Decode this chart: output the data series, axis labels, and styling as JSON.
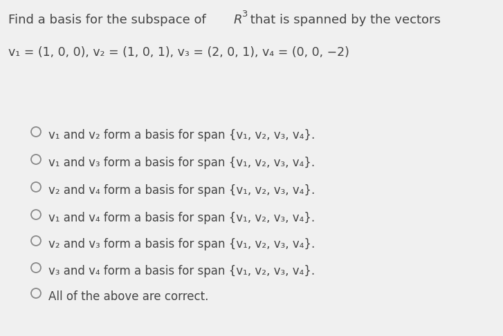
{
  "background_color": "#f0f0f0",
  "text_color": "#444444",
  "circle_color": "#888888",
  "title_fontsize": 13.0,
  "vectors_fontsize": 12.5,
  "option_fontsize": 12.0,
  "options": [
    "v₁ and v₂ form a basis for span {v₁, v₂, v₃, v₄}.",
    "v₁ and v₃ form a basis for span {v₁, v₂, v₃, v₄}.",
    "v₂ and v₄ form a basis for span {v₁, v₂, v₃, v₄}.",
    "v₁ and v₄ form a basis for span {v₁, v₂, v₃, v₄}.",
    "v₂ and v₃ form a basis for span {v₁, v₂, v₃, v₄}.",
    "v₃ and v₄ form a basis for span {v₁, v₂, v₃, v₄}.",
    "All of the above are correct."
  ]
}
